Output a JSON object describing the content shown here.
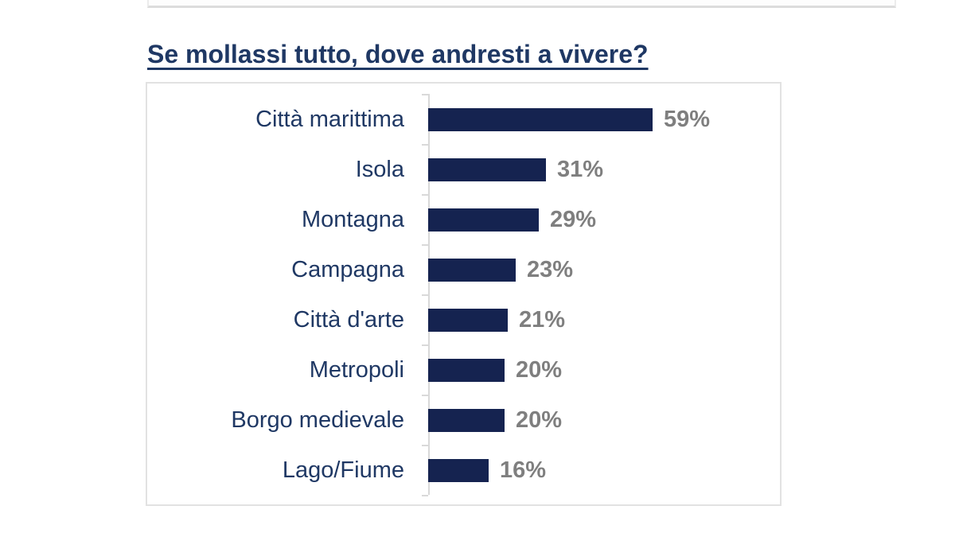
{
  "page": {
    "title": "Se mollassi tutto, dove andresti a vivere?"
  },
  "colors": {
    "title_text": "#1F3864",
    "category_text": "#1F3864",
    "value_text": "#7F7F7F",
    "bar": "#152350",
    "axis": "#D9D9D9",
    "chart_border": "#E2E2E2"
  },
  "chart_data": {
    "type": "bar",
    "orientation": "horizontal",
    "title": "Se mollassi tutto, dove andresti a vivere?",
    "categories": [
      "Città marittima",
      "Isola",
      "Montagna",
      "Campagna",
      "Città d'arte",
      "Metropoli",
      "Borgo medievale",
      "Lago/Fiume"
    ],
    "values": [
      59,
      31,
      29,
      23,
      21,
      20,
      20,
      16
    ],
    "value_labels": [
      "59%",
      "31%",
      "29%",
      "23%",
      "21%",
      "20%",
      "20%",
      "16%"
    ],
    "value_suffix": "%",
    "xlabel": "",
    "ylabel": "",
    "xlim": [
      0,
      65
    ],
    "grid": false,
    "legend": false,
    "bar_color": "#152350",
    "value_label_position": "outside-end"
  }
}
